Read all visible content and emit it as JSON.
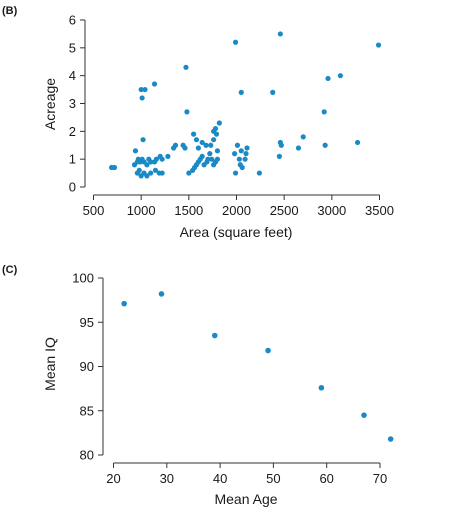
{
  "colors": {
    "points": "#1a8ac6",
    "axis": "#333333",
    "text": "#1a1a1a"
  },
  "chart_data": [
    {
      "panel_label": "(B)",
      "type": "scatter",
      "title": "",
      "xlabel": "Area (square feet)",
      "ylabel": "Acreage",
      "xlim": [
        500,
        3500
      ],
      "ylim": [
        0,
        6
      ],
      "xticks": [
        500,
        1000,
        1500,
        2000,
        2500,
        3000,
        3500
      ],
      "yticks": [
        0,
        1,
        2,
        3,
        4,
        5,
        6
      ],
      "x": [
        690,
        720,
        1000,
        1010,
        1040,
        1140,
        1470,
        1480,
        1990,
        2050,
        2380,
        2460,
        2930,
        2960,
        3090,
        3490,
        3270,
        2460,
        2700,
        2650,
        2920,
        2450,
        930,
        960,
        970,
        990,
        1010,
        1030,
        1060,
        1080,
        1100,
        1140,
        1160,
        1200,
        1220,
        1280,
        1340,
        1360,
        960,
        980,
        1000,
        1030,
        1060,
        1100,
        1150,
        1190,
        1220,
        940,
        1020,
        1500,
        1540,
        1560,
        1580,
        1600,
        1620,
        1640,
        1660,
        1690,
        1700,
        1720,
        1740,
        1760,
        1780,
        1800,
        1600,
        1640,
        1680,
        1730,
        1760,
        1790,
        1820,
        1550,
        1580,
        1760,
        1780,
        1800,
        1440,
        1460,
        1980,
        2010,
        2030,
        2060,
        2090,
        2110,
        1990,
        2040,
        2100,
        2050,
        2240,
        2470
      ],
      "y": [
        0.7,
        0.7,
        3.5,
        3.2,
        3.5,
        3.7,
        4.3,
        2.7,
        5.2,
        3.4,
        3.4,
        5.5,
        1.5,
        3.9,
        4.0,
        5.1,
        1.6,
        1.6,
        1.8,
        1.4,
        2.7,
        1.1,
        0.8,
        0.9,
        1.0,
        0.9,
        1.0,
        0.9,
        0.8,
        1.0,
        0.9,
        0.9,
        1.0,
        1.1,
        1.0,
        1.1,
        1.4,
        1.5,
        0.5,
        0.6,
        0.4,
        0.5,
        0.4,
        0.5,
        0.6,
        0.5,
        0.5,
        1.3,
        1.7,
        0.5,
        0.6,
        0.7,
        0.8,
        0.9,
        1.0,
        1.1,
        0.8,
        0.9,
        1.0,
        1.2,
        1.0,
        0.8,
        0.9,
        1.0,
        1.4,
        1.6,
        1.5,
        1.5,
        1.7,
        1.9,
        2.3,
        1.9,
        1.7,
        2.0,
        2.1,
        1.3,
        1.5,
        1.4,
        1.2,
        1.5,
        1.0,
        0.7,
        1.0,
        1.4,
        0.5,
        0.8,
        1.2,
        1.3,
        0.5,
        1.5
      ]
    },
    {
      "panel_label": "(C)",
      "type": "scatter",
      "title": "",
      "xlabel": "Mean Age",
      "ylabel": "Mean IQ",
      "xlim": [
        20,
        70
      ],
      "ylim": [
        80,
        100
      ],
      "xticks": [
        20,
        30,
        40,
        50,
        60,
        70
      ],
      "yticks": [
        80,
        85,
        90,
        95,
        100
      ],
      "x": [
        22,
        29,
        39,
        49,
        59,
        67,
        72
      ],
      "y": [
        97.1,
        98.2,
        93.5,
        91.8,
        87.6,
        84.5,
        81.8
      ]
    }
  ]
}
